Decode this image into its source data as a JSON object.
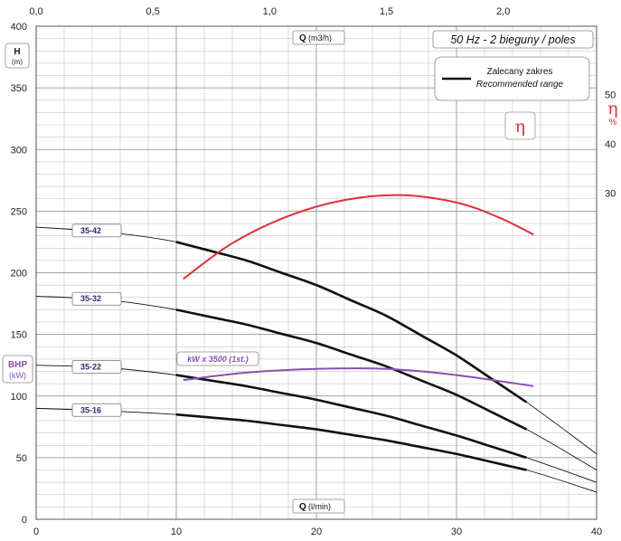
{
  "chart_data": {
    "type": "line",
    "title": "50 Hz - 2 bieguny / poles",
    "legend": {
      "line1": "Zalecany zakres",
      "line2": "Recommended range",
      "placement": "top-right"
    },
    "x_bottom": {
      "label": "Q",
      "unit": "(l/min)",
      "range": [
        0,
        40
      ],
      "ticks": [
        "0",
        "10",
        "20",
        "30",
        "40"
      ]
    },
    "x_top": {
      "label": "Q",
      "unit": "(m3/h)",
      "range": [
        0,
        2.4
      ],
      "ticks": [
        "0,0",
        "0,5",
        "1,0",
        "1,5",
        "2,0"
      ]
    },
    "y_left": {
      "label": "H",
      "unit": "(m)",
      "range": [
        0,
        400
      ],
      "ticks": [
        "0",
        "50",
        "100",
        "150",
        "200",
        "250",
        "300",
        "350",
        "400"
      ]
    },
    "y_bhp": {
      "label": "BHP",
      "unit": "(kW)"
    },
    "y_right": {
      "label": "η",
      "unit": "%",
      "ticks": [
        "30",
        "40",
        "50"
      ],
      "values": [
        30,
        40,
        50
      ]
    },
    "eta_badge": "η",
    "kw_label": "kW x 3500 (1st.)",
    "grid": true,
    "colors": {
      "head": "#111111",
      "efficiency": "#e0303a",
      "power": "#8a4fb0",
      "grid": "#aaaaaa"
    },
    "series": [
      {
        "name": "35-42",
        "x": [
          0,
          5,
          10,
          15,
          20,
          25,
          30,
          35,
          40
        ],
        "y": [
          237,
          233,
          225,
          210,
          190,
          165,
          133,
          95,
          53
        ],
        "recommended": [
          10,
          35
        ]
      },
      {
        "name": "35-32",
        "x": [
          0,
          5,
          10,
          15,
          20,
          25,
          30,
          35,
          40
        ],
        "y": [
          181,
          178,
          170,
          158,
          143,
          124,
          101,
          73,
          40
        ],
        "recommended": [
          10,
          35
        ]
      },
      {
        "name": "35-22",
        "x": [
          0,
          5,
          10,
          15,
          20,
          25,
          30,
          35,
          40
        ],
        "y": [
          125,
          123,
          117,
          108,
          97,
          84,
          68,
          50,
          30
        ],
        "recommended": [
          10,
          35
        ]
      },
      {
        "name": "35-16",
        "x": [
          0,
          5,
          10,
          15,
          20,
          25,
          30,
          35,
          40
        ],
        "y": [
          90,
          88,
          85,
          80,
          73,
          64,
          53,
          40,
          22
        ],
        "recommended": [
          10,
          35
        ]
      }
    ],
    "efficiency_curve": {
      "x": [
        10.5,
        14,
        18,
        22,
        26,
        30,
        33,
        35.5
      ],
      "y": [
        195,
        224,
        246,
        259,
        263,
        257,
        245,
        231
      ]
    },
    "power_curve": {
      "x": [
        10.5,
        15,
        20,
        25,
        30,
        35.5
      ],
      "y": [
        113,
        119,
        122,
        122,
        117,
        108
      ]
    }
  }
}
